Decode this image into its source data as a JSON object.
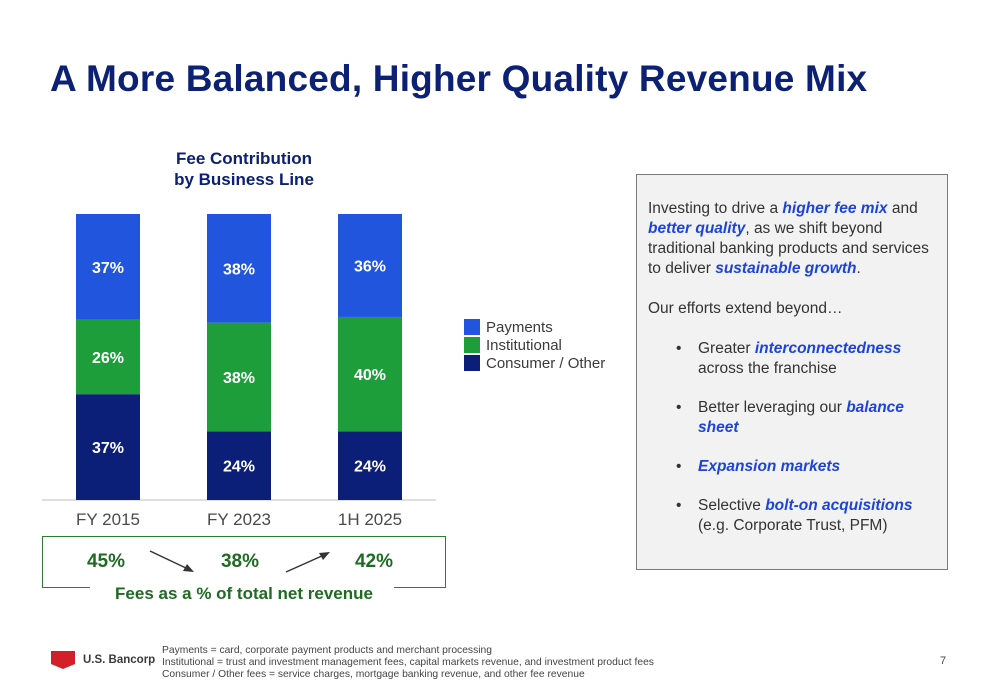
{
  "title": "A More Balanced, Higher Quality Revenue Mix",
  "chart_title_line1": "Fee Contribution",
  "chart_title_line2": "by Business Line",
  "colors": {
    "payments": "#2255dd",
    "institutional": "#1e9e3a",
    "consumer_other": "#0c1f78",
    "title_navy": "#0c2074",
    "fees_green": "#1e6b22",
    "accent_blue": "#1d44d8"
  },
  "chart_data": {
    "type": "bar",
    "stacked": true,
    "title": "Fee Contribution by Business Line",
    "categories": [
      "FY 2015",
      "FY 2023",
      "1H 2025"
    ],
    "series": [
      {
        "name": "Consumer / Other",
        "values": [
          37,
          24,
          24
        ],
        "labels": [
          "37%",
          "24%",
          "24%"
        ]
      },
      {
        "name": "Institutional",
        "values": [
          26,
          38,
          40
        ],
        "labels": [
          "26%",
          "38%",
          "40%"
        ]
      },
      {
        "name": "Payments",
        "values": [
          37,
          38,
          36
        ],
        "labels": [
          "37%",
          "38%",
          "36%"
        ]
      }
    ],
    "ylim": [
      0,
      100
    ],
    "unit": "%",
    "legend": [
      "Payments",
      "Institutional",
      "Consumer / Other"
    ],
    "legend_position": "right",
    "grid": false
  },
  "fees_pct": {
    "values": [
      "45%",
      "38%",
      "42%"
    ],
    "trend": [
      "down",
      "up"
    ],
    "caption": "Fees as a % of total net revenue"
  },
  "panel": {
    "intro": [
      {
        "t": "Investing to drive a "
      },
      {
        "t": "higher fee mix",
        "em": true
      },
      {
        "t": " and "
      },
      {
        "t": "better quality",
        "em": true
      },
      {
        "t": ", as we shift beyond traditional banking products and services to deliver "
      },
      {
        "t": "sustainable growth",
        "em": true
      },
      {
        "t": "."
      }
    ],
    "lead": "Our efforts extend beyond…",
    "bullet_glyph": "•",
    "bullets": [
      [
        {
          "t": "Greater "
        },
        {
          "t": "interconnectedness",
          "em": true
        },
        {
          "t": " across the franchise"
        }
      ],
      [
        {
          "t": "Better leveraging our "
        },
        {
          "t": "balance sheet",
          "em": true
        }
      ],
      [
        {
          "t": "Expansion markets",
          "em": true
        }
      ],
      [
        {
          "t": "Selective "
        },
        {
          "t": "bolt-on acquisitions",
          "em": true
        },
        {
          "t": " (e.g. Corporate Trust, PFM)"
        }
      ]
    ]
  },
  "footer": {
    "logo_text": "U.S. Bancorp",
    "notes": [
      "Payments = card, corporate payment products and merchant processing",
      "Institutional = trust and investment management fees, capital markets revenue, and investment product fees",
      "Consumer / Other fees = service charges, mortgage banking revenue, and other fee revenue"
    ],
    "page_number": "7"
  }
}
